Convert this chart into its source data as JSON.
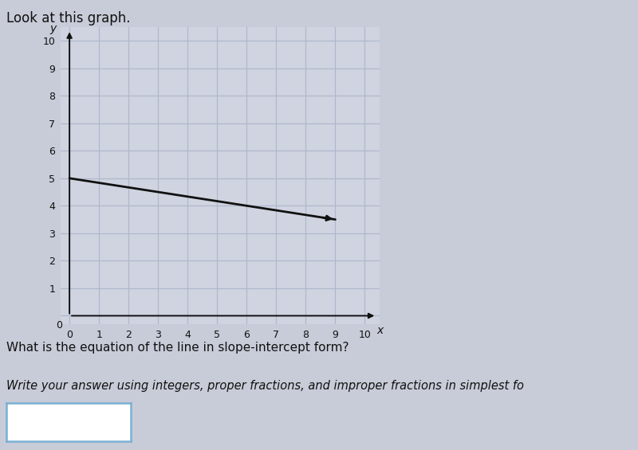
{
  "title": "Look at this graph.",
  "title_fontsize": 12,
  "title_color": "#111111",
  "bg_color": "#c8ccd8",
  "plot_bg_color": "#d0d4e0",
  "grid_color": "#b0b8cc",
  "axis_color": "#111111",
  "line_color": "#111111",
  "line_x_start": 0,
  "line_y_start": 5,
  "line_x_end": 9.0,
  "line_y_end": 3.5,
  "xlim": [
    -0.3,
    10.5
  ],
  "ylim": [
    -0.3,
    10.5
  ],
  "xticks": [
    0,
    1,
    2,
    3,
    4,
    5,
    6,
    7,
    8,
    9,
    10
  ],
  "yticks": [
    1,
    2,
    3,
    4,
    5,
    6,
    7,
    8,
    9,
    10
  ],
  "xlabel": "x",
  "ylabel": "y",
  "question_text": "What is the equation of the line in slope-intercept form?",
  "instruction_text": "Write your answer using integers, proper fractions, and improper fractions in simplest fo",
  "question_fontsize": 11,
  "instruction_fontsize": 10.5,
  "box_color": "#ffffff",
  "box_border_color": "#7ab0d4"
}
